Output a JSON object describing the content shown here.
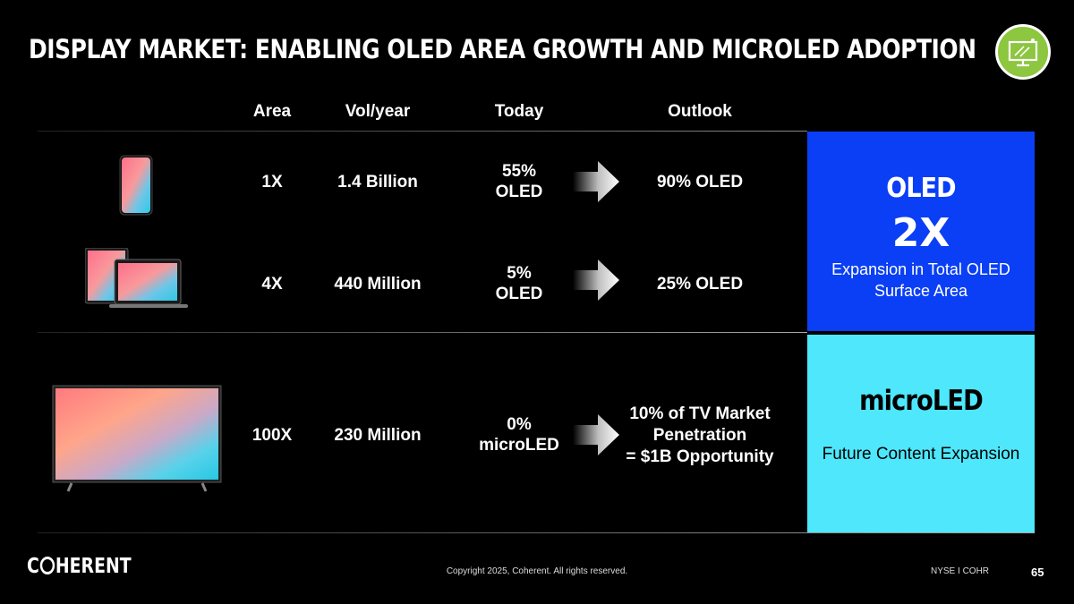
{
  "title": "DISPLAY MARKET: ENABLING OLED AREA GROWTH AND MICROLED ADOPTION",
  "badge_icon": "display-monitor-icon",
  "headers": {
    "area": "Area",
    "vol": "Vol/year",
    "today": "Today",
    "outlook": "Outlook"
  },
  "rows": [
    {
      "device": "smartphone",
      "area": "1X",
      "vol": "1.4 Billion",
      "today_line1": "55%",
      "today_line2": "OLED",
      "outlook": "90% OLED"
    },
    {
      "device": "tablet-laptop",
      "area": "4X",
      "vol": "440 Million",
      "today_line1": "5%",
      "today_line2": "OLED",
      "outlook": "25% OLED"
    },
    {
      "device": "television",
      "area": "100X",
      "vol": "230 Million",
      "today_line1": "0%",
      "today_line2": "microLED",
      "outlook_line1": "10% of TV Market",
      "outlook_line2": "Penetration",
      "outlook_line3": "= $1B Opportunity"
    }
  ],
  "oled_panel": {
    "title": "OLED",
    "multiplier": "2X",
    "desc_line1": "Expansion in Total OLED",
    "desc_line2": "Surface Area",
    "color": "#0a3ff5"
  },
  "micro_panel": {
    "title": "microLED",
    "desc": "Future Content Expansion",
    "color": "#4ee7fb"
  },
  "footer": {
    "logo_pre": "C",
    "logo_post": "HERENT",
    "copyright": "Copyright 2025, Coherent. All rights reserved.",
    "ticker": "NYSE I COHR",
    "page": "65"
  }
}
